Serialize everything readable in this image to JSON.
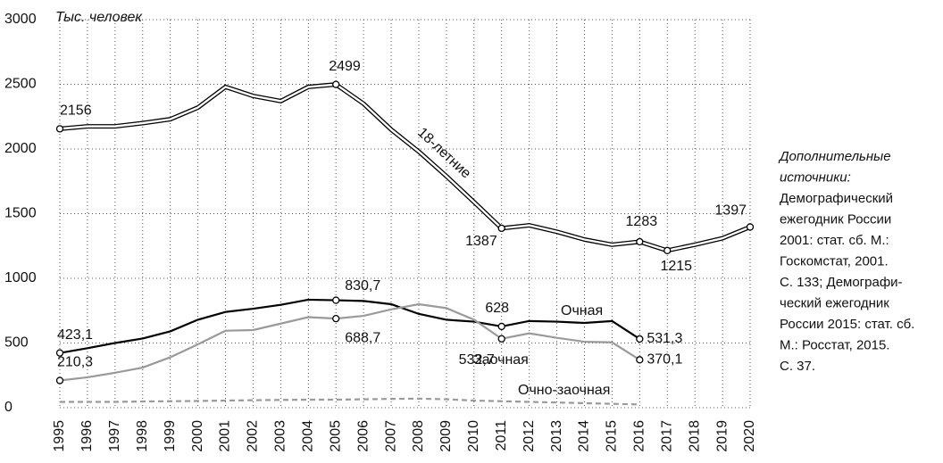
{
  "chart_data": {
    "type": "line",
    "y_label": "Тыс. человек",
    "x": [
      1995,
      1996,
      1997,
      1998,
      1999,
      2000,
      2001,
      2002,
      2003,
      2004,
      2005,
      2006,
      2007,
      2008,
      2009,
      2010,
      2011,
      2012,
      2013,
      2014,
      2015,
      2016,
      2017,
      2018,
      2019,
      2020
    ],
    "xlim": [
      1995,
      2020
    ],
    "ylim": [
      0,
      3000
    ],
    "yticks": [
      0,
      500,
      1000,
      1500,
      2000,
      2500,
      3000
    ],
    "grid": true,
    "series": [
      {
        "name": "18-летние",
        "color": "#000000",
        "style": "double",
        "values": [
          2156,
          2175,
          2175,
          2200,
          2230,
          2320,
          2480,
          2410,
          2370,
          2480,
          2499,
          2350,
          2150,
          1980,
          1790,
          1590,
          1387,
          1410,
          1360,
          1300,
          1260,
          1283,
          1215,
          1260,
          1310,
          1397
        ],
        "value_labels": [
          "2156",
          null,
          null,
          null,
          null,
          null,
          null,
          null,
          null,
          null,
          "2499",
          null,
          null,
          null,
          null,
          null,
          "1387",
          null,
          null,
          null,
          null,
          "1283",
          "1215",
          null,
          null,
          "1397"
        ]
      },
      {
        "name": "Очная",
        "color": "#000000",
        "style": "solid",
        "values": [
          423.1,
          460,
          500,
          535,
          590,
          680,
          740,
          765,
          795,
          835,
          830.7,
          825,
          800,
          725,
          680,
          665,
          628,
          670,
          665,
          655,
          670,
          531.3,
          null,
          null,
          null,
          null
        ],
        "value_labels": [
          "423,1",
          null,
          null,
          null,
          null,
          null,
          null,
          null,
          null,
          null,
          "830,7",
          null,
          null,
          null,
          null,
          null,
          "628",
          null,
          null,
          null,
          null,
          "531,3",
          null,
          null,
          null,
          null
        ]
      },
      {
        "name": "Заочная",
        "color": "#9a9a9a",
        "style": "solid",
        "values": [
          210.3,
          235,
          270,
          310,
          390,
          490,
          595,
          600,
          650,
          700,
          688.7,
          710,
          760,
          800,
          770,
          680,
          532.7,
          575,
          540,
          510,
          505,
          370.1,
          null,
          null,
          null,
          null
        ],
        "value_labels": [
          "210,3",
          null,
          null,
          null,
          null,
          null,
          null,
          null,
          null,
          null,
          "688,7",
          null,
          null,
          null,
          null,
          null,
          "532,7",
          null,
          null,
          null,
          null,
          "370,1",
          null,
          null,
          null,
          null
        ]
      },
      {
        "name": "Очно-заочная",
        "color": "#9a9a9a",
        "style": "dashed",
        "values": [
          45,
          45,
          45,
          48,
          50,
          52,
          55,
          58,
          60,
          62,
          62,
          65,
          68,
          70,
          65,
          55,
          50,
          45,
          40,
          35,
          30,
          25,
          null,
          null,
          null,
          null
        ]
      }
    ],
    "source_note": {
      "title": [
        "Дополнительные",
        "источники:"
      ],
      "lines": [
        "Демографический",
        "ежегодник России",
        "2001: стат. сб. М.:",
        "Госкомстат, 2001.",
        "С. 133; Демографи-",
        "ческий ежегодник",
        "России 2015: стат. сб.",
        "М.: Росстат, 2015.",
        "С. 37."
      ]
    }
  }
}
